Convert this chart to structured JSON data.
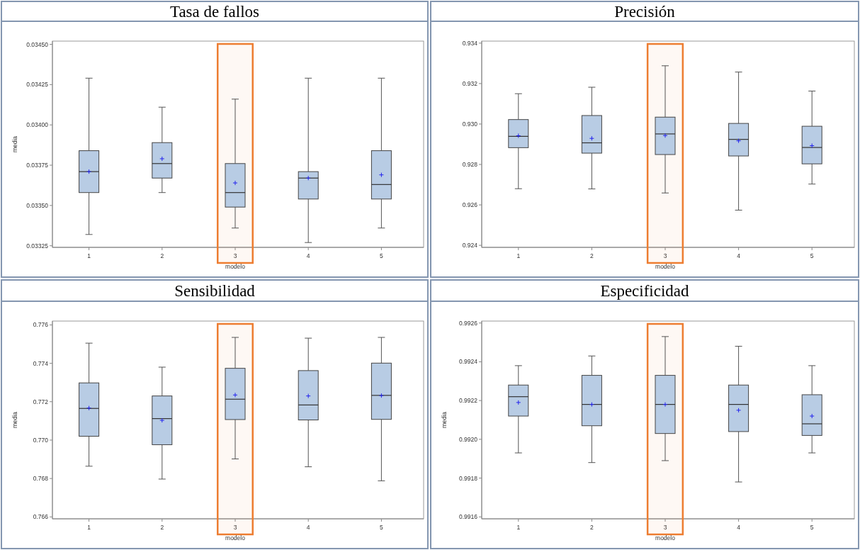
{
  "chart_data": [
    {
      "type": "box",
      "title": "Tasa de fallos",
      "xlabel": "modelo",
      "ylabel": "media",
      "categories": [
        "1",
        "2",
        "3",
        "4",
        "5"
      ],
      "color": "#b8cce4",
      "boxes": [
        {
          "low": 0.03332,
          "q1": 0.03358,
          "median": 0.03371,
          "q3": 0.03384,
          "high": 0.03429,
          "mean": 0.03371
        },
        {
          "low": 0.03358,
          "q1": 0.03367,
          "median": 0.03376,
          "q3": 0.03389,
          "high": 0.03411,
          "mean": 0.03379
        },
        {
          "low": 0.03336,
          "q1": 0.03349,
          "median": 0.03358,
          "q3": 0.03376,
          "high": 0.03416,
          "mean": 0.03364
        },
        {
          "low": 0.03327,
          "q1": 0.03354,
          "median": 0.03367,
          "q3": 0.03371,
          "high": 0.03429,
          "mean": 0.03367
        },
        {
          "low": 0.03336,
          "q1": 0.03354,
          "median": 0.03363,
          "q3": 0.03384,
          "high": 0.03429,
          "mean": 0.03369
        }
      ],
      "ylim": [
        0.03324,
        0.03452
      ],
      "yticks": [
        {
          "value": 0.03325,
          "label": "0.03325"
        },
        {
          "value": 0.0335,
          "label": "0.03350"
        },
        {
          "value": 0.03375,
          "label": "0.03375"
        },
        {
          "value": 0.034,
          "label": "0.03400"
        },
        {
          "value": 0.03425,
          "label": "0.03425"
        },
        {
          "value": 0.0345,
          "label": "0.03450"
        }
      ],
      "bands": [
        {
          "axis": "x",
          "from": "3",
          "to": "3",
          "color": "#ed7d31"
        }
      ],
      "grid": false
    },
    {
      "type": "box",
      "title": "Precisión",
      "xlabel": "modelo",
      "categories": [
        "1",
        "2",
        "3",
        "4",
        "5"
      ],
      "color": "#b8cce4",
      "boxes": [
        {
          "low": 0.9268,
          "q1": 0.92883,
          "median": 0.92939,
          "q3": 0.93022,
          "high": 0.9315,
          "mean": 0.92942
        },
        {
          "low": 0.92679,
          "q1": 0.92856,
          "median": 0.92907,
          "q3": 0.93042,
          "high": 0.93182,
          "mean": 0.92929
        },
        {
          "low": 0.92659,
          "q1": 0.92849,
          "median": 0.92951,
          "q3": 0.93034,
          "high": 0.93288,
          "mean": 0.92943
        },
        {
          "low": 0.92574,
          "q1": 0.92842,
          "median": 0.92924,
          "q3": 0.93003,
          "high": 0.93257,
          "mean": 0.92917
        },
        {
          "low": 0.92703,
          "q1": 0.92803,
          "median": 0.92884,
          "q3": 0.92989,
          "high": 0.93163,
          "mean": 0.92893
        }
      ],
      "ylim": [
        0.9239,
        0.9341
      ],
      "yticks": [
        0.924,
        0.926,
        0.928,
        {
          "value": 0.93,
          "label": "0.930"
        },
        0.932,
        0.934
      ],
      "bands": [
        {
          "axis": "x",
          "from": "3",
          "to": "3",
          "color": "#ed7d31"
        }
      ],
      "grid": false
    },
    {
      "type": "box",
      "title": "Sensibilidad",
      "xlabel": "modelo",
      "ylabel": "media",
      "categories": [
        "1",
        "2",
        "3",
        "4",
        "5"
      ],
      "color": "#b8cce4",
      "boxes": [
        {
          "low": 0.76864,
          "q1": 0.7702,
          "median": 0.77165,
          "q3": 0.77298,
          "high": 0.77505,
          "mean": 0.77167
        },
        {
          "low": 0.76797,
          "q1": 0.76976,
          "median": 0.77112,
          "q3": 0.7723,
          "high": 0.7738,
          "mean": 0.77103
        },
        {
          "low": 0.76902,
          "q1": 0.77107,
          "median": 0.77213,
          "q3": 0.77374,
          "high": 0.77535,
          "mean": 0.77235
        },
        {
          "low": 0.76861,
          "q1": 0.77105,
          "median": 0.77183,
          "q3": 0.77362,
          "high": 0.77531,
          "mean": 0.7723
        },
        {
          "low": 0.76788,
          "q1": 0.77108,
          "median": 0.77233,
          "q3": 0.77401,
          "high": 0.77535,
          "mean": 0.77232
        }
      ],
      "ylim": [
        0.7659,
        0.7762
      ],
      "yticks": [
        0.766,
        0.768,
        {
          "value": 0.77,
          "label": "0.770"
        },
        0.772,
        0.774,
        0.776
      ],
      "bands": [
        {
          "axis": "x",
          "from": "3",
          "to": "3",
          "color": "#ed7d31"
        }
      ],
      "grid": false
    },
    {
      "type": "box",
      "title": "Especificidad",
      "xlabel": "modelo",
      "ylabel": "media",
      "categories": [
        "1",
        "2",
        "3",
        "4",
        "5"
      ],
      "color": "#b8cce4",
      "boxes": [
        {
          "low": 0.99193,
          "q1": 0.99212,
          "median": 0.99222,
          "q3": 0.99228,
          "high": 0.99238,
          "mean": 0.99219
        },
        {
          "low": 0.99188,
          "q1": 0.99207,
          "median": 0.99218,
          "q3": 0.99233,
          "high": 0.99243,
          "mean": 0.99218
        },
        {
          "low": 0.99189,
          "q1": 0.99203,
          "median": 0.99218,
          "q3": 0.99233,
          "high": 0.99253,
          "mean": 0.99218
        },
        {
          "low": 0.99178,
          "q1": 0.99204,
          "median": 0.99218,
          "q3": 0.99228,
          "high": 0.99248,
          "mean": 0.99215
        },
        {
          "low": 0.99193,
          "q1": 0.99202,
          "median": 0.99208,
          "q3": 0.99223,
          "high": 0.99238,
          "mean": 0.99212
        }
      ],
      "ylim": [
        0.99159,
        0.99261
      ],
      "yticks": [
        0.9916,
        0.9918,
        {
          "value": 0.992,
          "label": "0.9920"
        },
        0.9922,
        0.9924,
        0.9926
      ],
      "bands": [
        {
          "axis": "x",
          "from": "3",
          "to": "3",
          "color": "#ed7d31"
        }
      ],
      "grid": false
    }
  ]
}
